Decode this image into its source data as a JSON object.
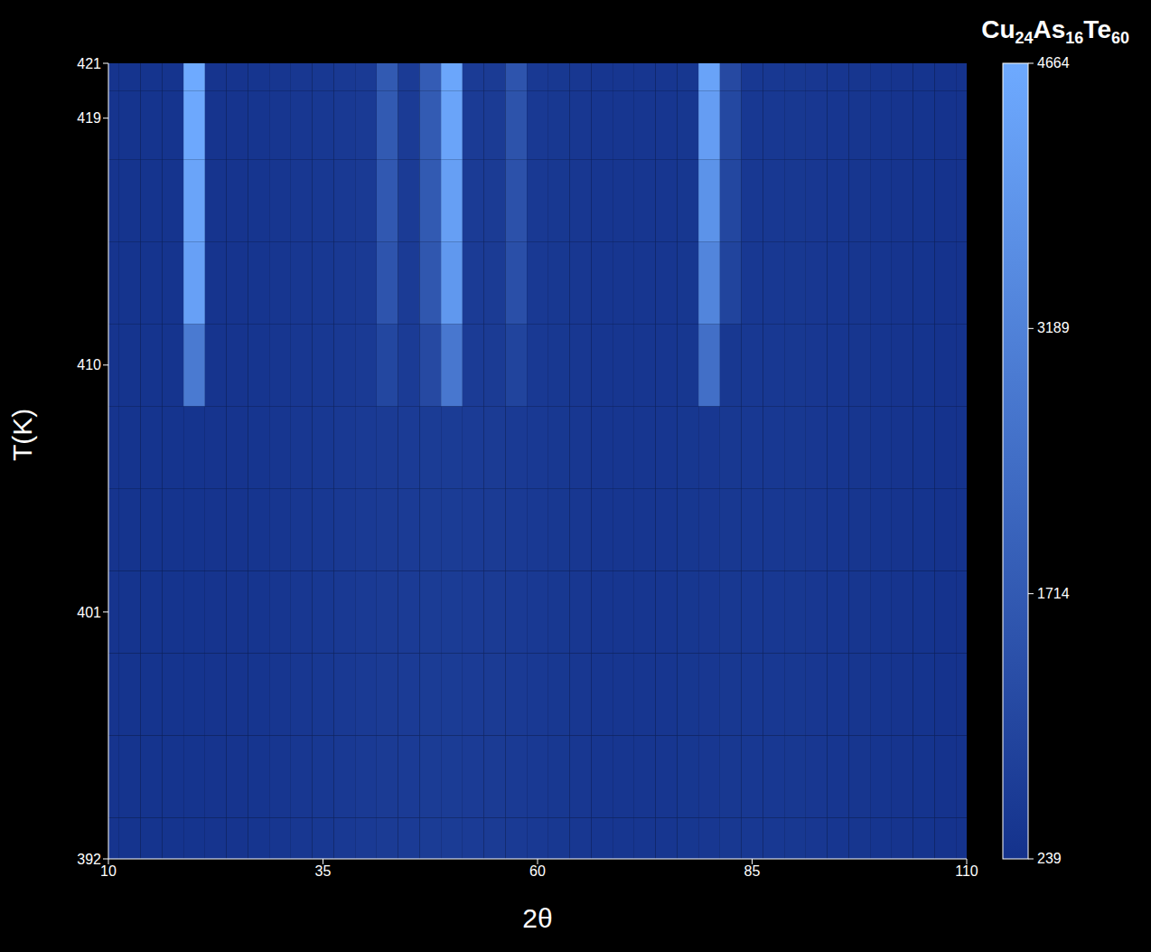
{
  "chart_data": {
    "type": "heatmap",
    "title": "Cu24As16Te60",
    "x_label": "2θ",
    "y_label": "T(K)",
    "x": [
      10,
      12.5,
      15,
      17.5,
      20,
      22.5,
      25,
      27.5,
      30,
      32.5,
      35,
      37.5,
      40,
      42.5,
      45,
      47.5,
      50,
      52.5,
      55,
      57.5,
      60,
      62.5,
      65,
      67.5,
      70,
      72.5,
      75,
      77.5,
      80,
      82.5,
      85,
      87.5,
      90,
      92.5,
      95,
      97.5,
      100,
      102.5,
      105,
      107.5,
      110
    ],
    "y": [
      392,
      395,
      398,
      401,
      404,
      407,
      410,
      413,
      416,
      419,
      421
    ],
    "xlim": [
      10,
      110
    ],
    "xticks": [
      10,
      35,
      60,
      85,
      110
    ],
    "ylim": [
      392,
      421
    ],
    "yticks": [
      392,
      401,
      410,
      419,
      421
    ],
    "z": [
      [
        320,
        310,
        300,
        300,
        310,
        320,
        330,
        350,
        380,
        420,
        460,
        500,
        530,
        560,
        580,
        590,
        590,
        580,
        560,
        530,
        490,
        450,
        420,
        400,
        390,
        390,
        400,
        410,
        430,
        450,
        460,
        460,
        450,
        430,
        400,
        370,
        340,
        320,
        300,
        290,
        280
      ],
      [
        320,
        310,
        300,
        300,
        310,
        320,
        330,
        350,
        380,
        420,
        460,
        500,
        530,
        560,
        580,
        590,
        590,
        580,
        560,
        530,
        490,
        450,
        420,
        400,
        390,
        390,
        400,
        410,
        430,
        450,
        460,
        460,
        450,
        430,
        400,
        370,
        340,
        320,
        300,
        290,
        280
      ],
      [
        320,
        310,
        300,
        300,
        310,
        320,
        330,
        350,
        380,
        420,
        460,
        500,
        530,
        560,
        580,
        590,
        590,
        580,
        560,
        530,
        490,
        450,
        420,
        400,
        390,
        390,
        400,
        410,
        430,
        450,
        460,
        460,
        450,
        430,
        400,
        370,
        340,
        320,
        300,
        290,
        280
      ],
      [
        320,
        310,
        300,
        300,
        310,
        320,
        330,
        350,
        380,
        420,
        460,
        500,
        530,
        560,
        580,
        590,
        590,
        580,
        560,
        530,
        490,
        450,
        420,
        400,
        390,
        390,
        400,
        410,
        430,
        450,
        460,
        460,
        450,
        430,
        400,
        370,
        340,
        320,
        300,
        290,
        280
      ],
      [
        320,
        310,
        300,
        300,
        310,
        320,
        330,
        350,
        380,
        420,
        460,
        500,
        530,
        560,
        580,
        590,
        590,
        580,
        560,
        530,
        490,
        450,
        420,
        400,
        390,
        390,
        400,
        410,
        430,
        450,
        460,
        460,
        450,
        430,
        400,
        370,
        340,
        320,
        300,
        290,
        280
      ],
      [
        320,
        310,
        300,
        300,
        310,
        320,
        330,
        350,
        380,
        420,
        460,
        500,
        530,
        560,
        580,
        590,
        590,
        580,
        560,
        530,
        490,
        450,
        420,
        400,
        390,
        390,
        400,
        410,
        430,
        450,
        460,
        460,
        450,
        430,
        400,
        370,
        340,
        320,
        300,
        290,
        280
      ],
      [
        320,
        310,
        300,
        300,
        2900,
        320,
        330,
        350,
        380,
        420,
        460,
        500,
        530,
        1000,
        580,
        1100,
        2800,
        580,
        560,
        900,
        490,
        450,
        420,
        400,
        390,
        390,
        400,
        410,
        2500,
        450,
        460,
        460,
        450,
        430,
        400,
        370,
        340,
        320,
        300,
        290,
        280
      ],
      [
        320,
        310,
        300,
        300,
        4300,
        320,
        330,
        350,
        380,
        420,
        460,
        500,
        530,
        1500,
        580,
        1600,
        4000,
        580,
        560,
        1300,
        490,
        450,
        420,
        400,
        390,
        390,
        400,
        410,
        3300,
        900,
        460,
        460,
        450,
        430,
        400,
        370,
        340,
        320,
        300,
        290,
        280
      ],
      [
        320,
        310,
        300,
        300,
        4450,
        320,
        330,
        350,
        380,
        420,
        460,
        500,
        530,
        1650,
        580,
        1700,
        4250,
        580,
        560,
        1400,
        490,
        450,
        420,
        400,
        390,
        390,
        400,
        410,
        3800,
        1000,
        460,
        460,
        450,
        430,
        400,
        370,
        340,
        320,
        300,
        290,
        280
      ],
      [
        320,
        310,
        300,
        300,
        4600,
        320,
        330,
        350,
        380,
        420,
        460,
        500,
        530,
        1700,
        580,
        1750,
        4450,
        580,
        560,
        1450,
        490,
        450,
        420,
        400,
        390,
        390,
        400,
        410,
        4200,
        1050,
        460,
        460,
        450,
        430,
        400,
        370,
        340,
        320,
        300,
        290,
        280
      ],
      [
        320,
        310,
        300,
        300,
        4664,
        320,
        330,
        350,
        380,
        420,
        460,
        500,
        530,
        1714,
        580,
        1800,
        4500,
        580,
        560,
        1500,
        490,
        450,
        420,
        400,
        390,
        390,
        400,
        410,
        4400,
        1100,
        460,
        460,
        450,
        430,
        400,
        370,
        340,
        320,
        300,
        290,
        280
      ]
    ],
    "colorbar": {
      "range": [
        239,
        4664
      ],
      "ticks": [
        239,
        1714,
        3189,
        4664
      ]
    }
  }
}
